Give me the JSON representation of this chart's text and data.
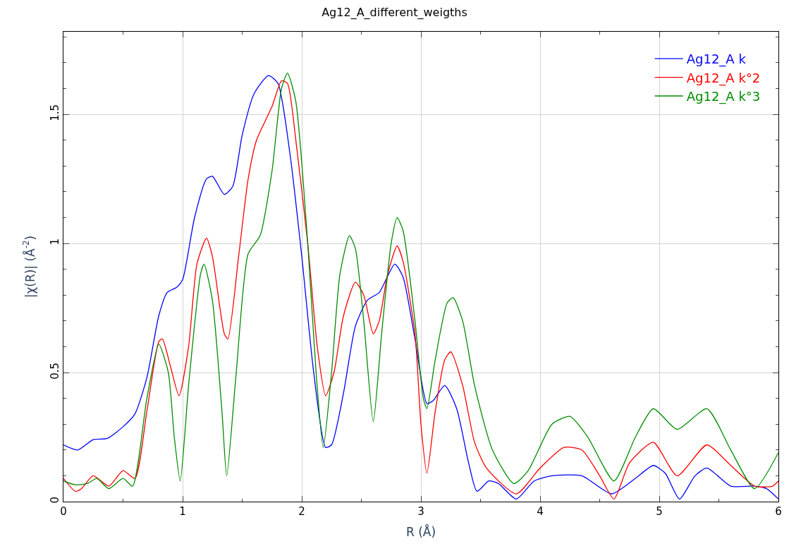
{
  "chart_data": {
    "type": "line",
    "title": "Ag12_A_different_weigths",
    "xlabel": "R (Å)",
    "ylabel": "|χ(R)| (Å$^{-2}$)",
    "xlim": [
      0,
      6
    ],
    "xticks": [
      0,
      1,
      2,
      3,
      4,
      5,
      6
    ],
    "ylim": [
      0,
      1.82
    ],
    "yticks": [
      0,
      {
        "value": 0.5,
        "label": "0.5"
      },
      1,
      {
        "value": 1.5,
        "label": "1.5"
      }
    ],
    "grid": true,
    "legend": "top right",
    "marker": "none",
    "line_style": "solid",
    "series": [
      {
        "name": "Ag12_A k",
        "color": "#0000ff",
        "x": [
          0,
          0.12,
          0.25,
          0.37,
          0.5,
          0.6,
          0.7,
          0.8,
          0.87,
          0.95,
          1.0,
          1.1,
          1.2,
          1.25,
          1.35,
          1.42,
          1.5,
          1.6,
          1.72,
          1.8,
          1.9,
          2.0,
          2.1,
          2.2,
          2.25,
          2.35,
          2.45,
          2.55,
          2.65,
          2.78,
          2.85,
          2.95,
          3.05,
          3.1,
          3.2,
          3.3,
          3.4,
          3.47,
          3.57,
          3.65,
          3.8,
          3.95,
          4.1,
          4.35,
          4.6,
          4.8,
          4.95,
          5.05,
          5.17,
          5.3,
          5.4,
          5.6,
          5.8,
          5.9,
          6.0
        ],
        "values": [
          0.22,
          0.2,
          0.24,
          0.245,
          0.29,
          0.34,
          0.48,
          0.72,
          0.81,
          0.83,
          0.86,
          1.1,
          1.25,
          1.26,
          1.19,
          1.22,
          1.42,
          1.58,
          1.65,
          1.62,
          1.35,
          0.95,
          0.5,
          0.21,
          0.22,
          0.42,
          0.68,
          0.78,
          0.81,
          0.92,
          0.87,
          0.63,
          0.38,
          0.39,
          0.45,
          0.36,
          0.15,
          0.04,
          0.08,
          0.07,
          0.01,
          0.08,
          0.1,
          0.1,
          0.03,
          0.09,
          0.14,
          0.11,
          0.01,
          0.1,
          0.13,
          0.06,
          0.06,
          0.05,
          0.01
        ]
      },
      {
        "name": "Ag12_A k°2",
        "color": "#ff0000",
        "x": [
          0,
          0.1,
          0.15,
          0.25,
          0.38,
          0.5,
          0.6,
          0.7,
          0.8,
          0.83,
          0.9,
          0.97,
          1.05,
          1.12,
          1.2,
          1.25,
          1.35,
          1.38,
          1.47,
          1.55,
          1.62,
          1.75,
          1.83,
          1.88,
          1.95,
          2.05,
          2.13,
          2.2,
          2.27,
          2.35,
          2.45,
          2.52,
          2.6,
          2.65,
          2.72,
          2.8,
          2.85,
          2.95,
          3.0,
          3.05,
          3.12,
          3.2,
          3.25,
          3.35,
          3.45,
          3.55,
          3.8,
          4.0,
          4.2,
          4.35,
          4.5,
          4.62,
          4.75,
          4.95,
          5.15,
          5.4,
          5.6,
          5.8,
          5.95,
          6.0
        ],
        "values": [
          0.09,
          0.04,
          0.05,
          0.1,
          0.06,
          0.12,
          0.09,
          0.35,
          0.62,
          0.63,
          0.52,
          0.41,
          0.6,
          0.92,
          1.02,
          0.95,
          0.65,
          0.63,
          0.95,
          1.25,
          1.4,
          1.53,
          1.63,
          1.62,
          1.4,
          1.0,
          0.6,
          0.41,
          0.5,
          0.72,
          0.85,
          0.8,
          0.65,
          0.7,
          0.88,
          0.99,
          0.93,
          0.65,
          0.3,
          0.11,
          0.35,
          0.55,
          0.58,
          0.45,
          0.23,
          0.13,
          0.03,
          0.13,
          0.21,
          0.2,
          0.1,
          0.01,
          0.15,
          0.23,
          0.1,
          0.22,
          0.14,
          0.06,
          0.06,
          0.08
        ]
      },
      {
        "name": "Ag12_A k°3",
        "color": "#008c00",
        "x": [
          0,
          0.1,
          0.2,
          0.28,
          0.38,
          0.5,
          0.58,
          0.7,
          0.8,
          0.88,
          0.93,
          0.98,
          1.05,
          1.15,
          1.18,
          1.25,
          1.33,
          1.37,
          1.45,
          1.55,
          1.65,
          1.75,
          1.83,
          1.88,
          1.95,
          2.05,
          2.12,
          2.18,
          2.25,
          2.32,
          2.4,
          2.45,
          2.52,
          2.6,
          2.67,
          2.75,
          2.8,
          2.85,
          2.95,
          3.02,
          3.05,
          3.12,
          3.22,
          3.27,
          3.35,
          3.45,
          3.6,
          3.78,
          3.9,
          4.1,
          4.25,
          4.4,
          4.62,
          4.8,
          4.95,
          5.15,
          5.4,
          5.6,
          5.8,
          6.0
        ],
        "values": [
          0.08,
          0.065,
          0.07,
          0.09,
          0.05,
          0.09,
          0.06,
          0.4,
          0.61,
          0.5,
          0.25,
          0.08,
          0.45,
          0.88,
          0.92,
          0.78,
          0.35,
          0.1,
          0.5,
          0.96,
          1.03,
          1.28,
          1.6,
          1.66,
          1.55,
          1.0,
          0.5,
          0.21,
          0.5,
          0.88,
          1.03,
          0.98,
          0.7,
          0.31,
          0.65,
          1.0,
          1.1,
          1.05,
          0.7,
          0.4,
          0.36,
          0.55,
          0.77,
          0.79,
          0.7,
          0.45,
          0.2,
          0.07,
          0.12,
          0.3,
          0.33,
          0.25,
          0.08,
          0.25,
          0.36,
          0.28,
          0.36,
          0.2,
          0.05,
          0.19
        ]
      }
    ]
  }
}
